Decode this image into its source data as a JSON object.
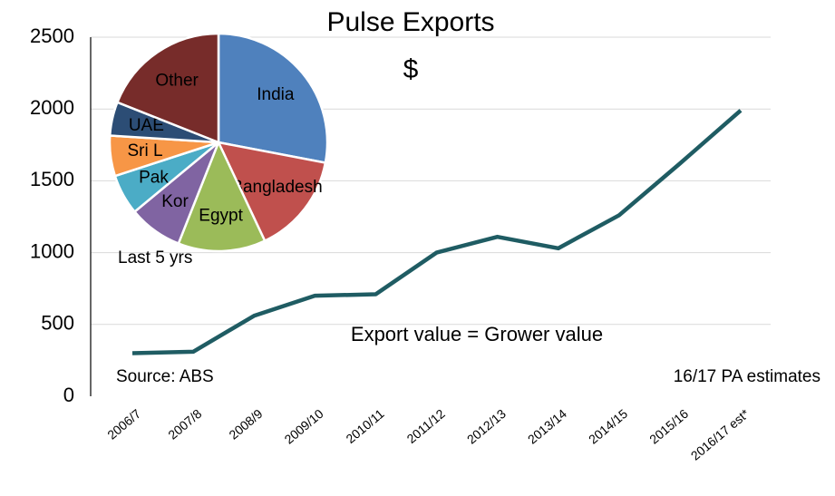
{
  "chart_data": [
    {
      "type": "line",
      "title": "Pulse Exports",
      "annotations": [
        "$",
        "Export value = Grower value",
        "Source: ABS",
        "16/17 PA estimates"
      ],
      "categories": [
        "2006/7",
        "2007/8",
        "2008/9",
        "2009/10",
        "2010/11",
        "2011/12",
        "2012/13",
        "2013/14",
        "2014/15",
        "2015/16",
        "2016/17 est*"
      ],
      "values": [
        300,
        310,
        560,
        700,
        710,
        1000,
        1110,
        1030,
        1260,
        1620,
        1990
      ],
      "color": "#1f5c63",
      "ylim": [
        0,
        2500
      ],
      "yticks": [
        0,
        500,
        1000,
        1500,
        2000,
        2500
      ],
      "grid": true
    },
    {
      "type": "pie",
      "title": "Last 5 yrs",
      "categories": [
        "India",
        "Bangladesh",
        "Egypt",
        "Kor",
        "Pak",
        "Sri L",
        "UAE",
        "Other"
      ],
      "values": [
        28,
        15,
        13,
        8,
        6,
        6,
        5,
        19
      ],
      "colors": [
        "#4f81bd",
        "#c0504d",
        "#9bbb59",
        "#8064a2",
        "#4bacc6",
        "#f79646",
        "#2c4d75",
        "#772c2a"
      ]
    }
  ]
}
